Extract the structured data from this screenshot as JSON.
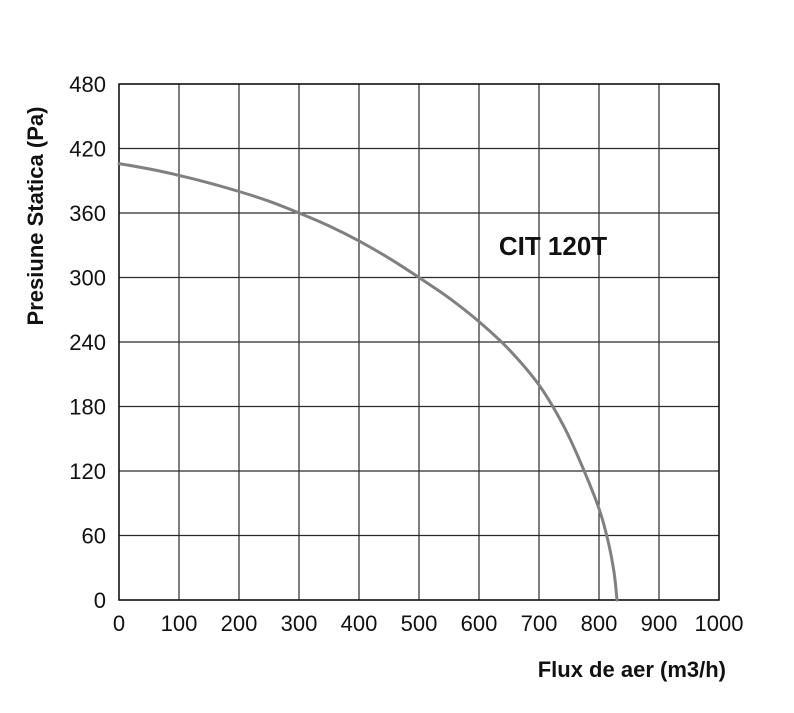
{
  "chart_data": {
    "type": "line",
    "xlabel": "Flux de aer (m3/h)",
    "ylabel": "Presiune Statica (Pa)",
    "xlim": [
      0,
      1000
    ],
    "ylim": [
      0,
      480
    ],
    "x_ticks": [
      0,
      100,
      200,
      300,
      400,
      500,
      600,
      700,
      800,
      900,
      1000
    ],
    "y_ticks": [
      0,
      60,
      120,
      180,
      240,
      300,
      360,
      420,
      480
    ],
    "grid": true,
    "series": [
      {
        "name": "CIT 120T",
        "color": "#808080",
        "x": [
          0,
          50,
          100,
          150,
          200,
          250,
          300,
          350,
          400,
          450,
          500,
          550,
          600,
          650,
          700,
          740,
          770,
          800,
          815,
          825,
          830
        ],
        "y": [
          406,
          401,
          395,
          388,
          380,
          371,
          360,
          348,
          334,
          318,
          300,
          281,
          259,
          233,
          200,
          163,
          127,
          85,
          55,
          26,
          0
        ]
      }
    ]
  }
}
